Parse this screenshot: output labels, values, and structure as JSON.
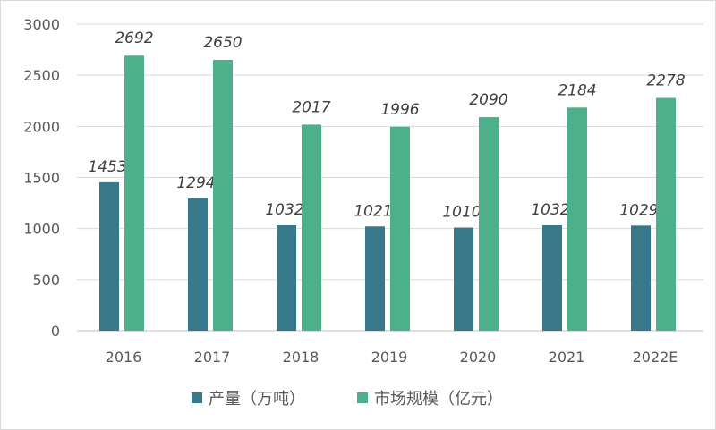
{
  "chart_data": {
    "type": "bar",
    "categories": [
      "2016",
      "2017",
      "2018",
      "2019",
      "2020",
      "2021",
      "2022E"
    ],
    "series": [
      {
        "name": "产量（万吨）",
        "values": [
          1453,
          1294,
          1032,
          1021,
          1010,
          1032,
          1029
        ],
        "color": "#37798a"
      },
      {
        "name": "市场规模（亿元）",
        "values": [
          2692,
          2650,
          2017,
          1996,
          2090,
          2184,
          2278
        ],
        "color": "#4cb08a"
      }
    ],
    "ylim": [
      0,
      3000
    ],
    "yticks": [
      0,
      500,
      1000,
      1500,
      2000,
      2500,
      3000
    ],
    "grid": true,
    "legend": "bottom",
    "data_labels": true
  }
}
